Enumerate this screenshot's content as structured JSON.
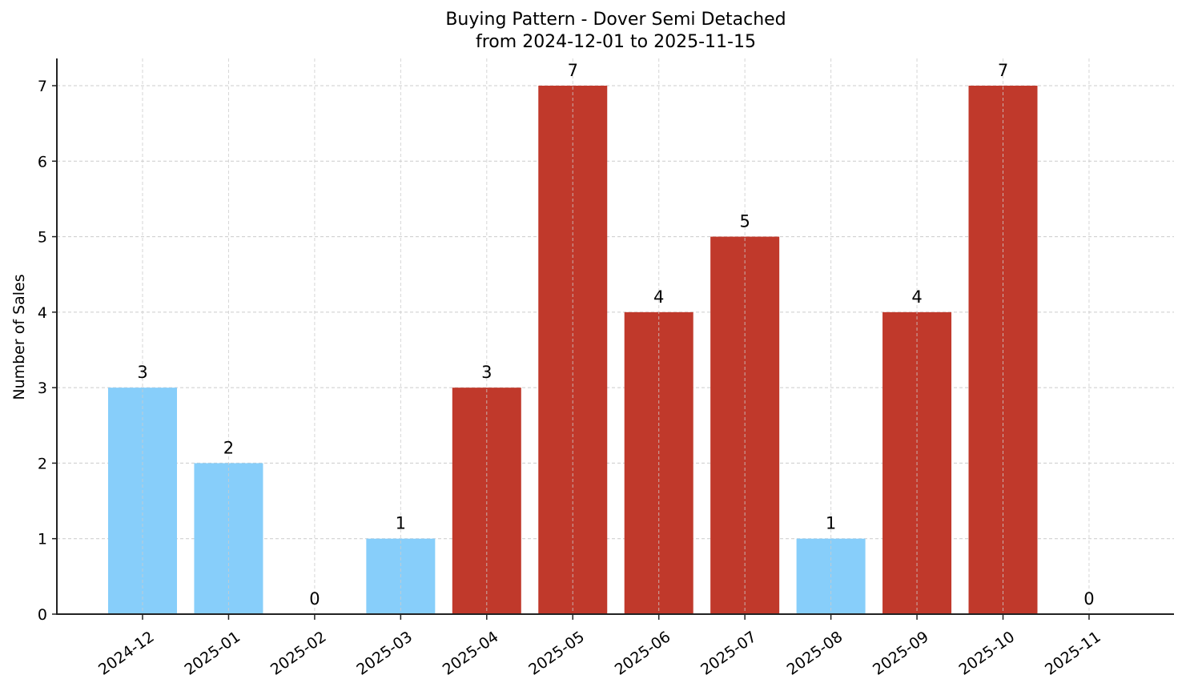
{
  "chart_data": {
    "type": "bar",
    "title": "Buying Pattern - Dover Semi Detached",
    "subtitle": "from 2024-12-01 to 2025-11-15",
    "xlabel": "",
    "ylabel": "Number of Sales",
    "categories": [
      "2024-12",
      "2025-01",
      "2025-02",
      "2025-03",
      "2025-04",
      "2025-05",
      "2025-06",
      "2025-07",
      "2025-08",
      "2025-09",
      "2025-10",
      "2025-11"
    ],
    "values": [
      3,
      2,
      0,
      1,
      3,
      7,
      4,
      5,
      1,
      4,
      7,
      0
    ],
    "bar_colors": [
      "#87CEFA",
      "#87CEFA",
      "#87CEFA",
      "#87CEFA",
      "#C0392B",
      "#C0392B",
      "#C0392B",
      "#C0392B",
      "#87CEFA",
      "#C0392B",
      "#C0392B",
      "#87CEFA"
    ],
    "ylim": [
      0,
      7.35
    ],
    "yticks": [
      0,
      1,
      2,
      3,
      4,
      5,
      6,
      7
    ],
    "grid": true,
    "data_labels": true,
    "legend": null
  },
  "colors": {
    "low": "#87CEFA",
    "high": "#C0392B",
    "grid": "#cccccc",
    "axis": "#222222"
  }
}
